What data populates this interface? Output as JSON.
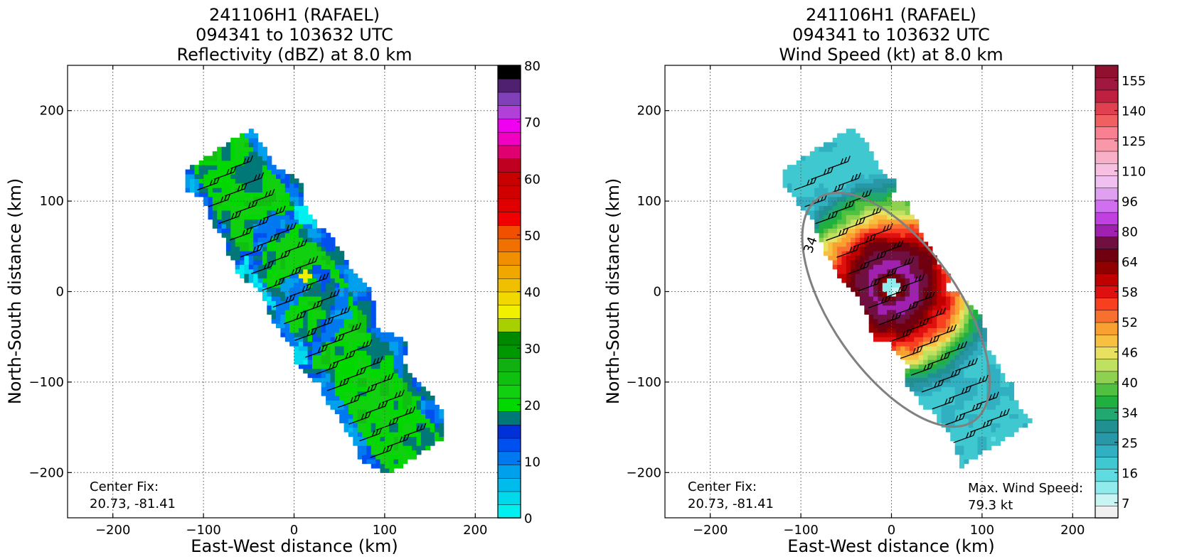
{
  "chart_data": [
    {
      "type": "heatmap",
      "title": [
        "241106H1 (RAFAEL)",
        "094341 to 103632 UTC",
        "Reflectivity (dBZ) at 8.0 km"
      ],
      "xlabel": "East-West distance (km)",
      "ylabel": "North-South distance (km)",
      "xlim": [
        -250,
        250
      ],
      "ylim": [
        -250,
        250
      ],
      "xticks": [
        -200,
        -100,
        0,
        100,
        200
      ],
      "yticks": [
        -200,
        -100,
        0,
        100,
        200
      ],
      "grid": true,
      "annotation": [
        "Center Fix:",
        "20.73, -81.41"
      ],
      "colorbar": {
        "ticks": [
          0,
          10,
          20,
          30,
          40,
          50,
          60,
          70,
          80
        ],
        "levels": [
          0,
          2.5,
          5,
          7.5,
          10,
          12.5,
          15,
          17.5,
          20,
          22.5,
          25,
          27.5,
          30,
          32.5,
          35,
          37.5,
          40,
          42.5,
          45,
          47.5,
          50,
          52.5,
          55,
          57.5,
          60,
          62.5,
          65,
          67.5,
          70,
          72.5,
          75,
          77.5,
          80
        ],
        "colors": [
          "#00f0f0",
          "#00d8ec",
          "#00bcec",
          "#00a0ec",
          "#0078f0",
          "#0050f0",
          "#0030d8",
          "#007878",
          "#00d800",
          "#10d010",
          "#10c010",
          "#10b010",
          "#009800",
          "#008800",
          "#a8d000",
          "#f0f000",
          "#f0d800",
          "#f0c000",
          "#f0a800",
          "#f09000",
          "#f07000",
          "#f05000",
          "#f00000",
          "#e00000",
          "#d00000",
          "#c80000",
          "#c00020",
          "#e00070",
          "#f000c0",
          "#f000f0",
          "#b040d8",
          "#8040b8",
          "#502070",
          "#000000"
        ]
      },
      "field": {
        "swath_axis": [
          [
            -80,
            150
          ],
          [
            130,
            -175
          ]
        ],
        "half_width_km": 50,
        "eye_center": [
          0,
          5
        ],
        "eye_radius_km": 14,
        "dominant_class": "green",
        "edge_class": "blue",
        "spot_max_dbz": 38
      }
    },
    {
      "type": "heatmap",
      "title": [
        "241106H1 (RAFAEL)",
        "094341 to 103632 UTC",
        "Wind Speed (kt) at 8.0 km"
      ],
      "xlabel": "East-West distance (km)",
      "ylabel": "North-South distance (km)",
      "xlim": [
        -250,
        250
      ],
      "ylim": [
        -250,
        250
      ],
      "xticks": [
        -200,
        -100,
        0,
        100,
        200
      ],
      "yticks": [
        -200,
        -100,
        0,
        100,
        200
      ],
      "grid": true,
      "annotation": [
        "Center Fix:",
        "20.73, -81.41"
      ],
      "annotation_right": [
        "Max. Wind Speed:",
        "79.3 kt"
      ],
      "contour_label": "34",
      "colorbar": {
        "ticks": [
          7,
          16,
          25,
          34,
          40,
          46,
          52,
          58,
          64,
          80,
          96,
          110,
          125,
          140,
          155
        ],
        "colors": [
          "#f0f0f0",
          "#c8f4f4",
          "#90ecec",
          "#60dce0",
          "#40c8d0",
          "#30b0c0",
          "#2898a8",
          "#209090",
          "#20a870",
          "#20b040",
          "#50c040",
          "#90d050",
          "#c0e060",
          "#e8e060",
          "#f8c040",
          "#f8a030",
          "#f87030",
          "#f84020",
          "#e01010",
          "#c00000",
          "#900000",
          "#700010",
          "#701040",
          "#a020b0",
          "#c040e0",
          "#d070f0",
          "#e0a0f0",
          "#f0c0f0",
          "#f8c0e0",
          "#f8b0c8",
          "#f898a8",
          "#f88090",
          "#f06060",
          "#e04050",
          "#c02040",
          "#a01840",
          "#901030"
        ]
      },
      "max_wind_kt": 79.3,
      "field": {
        "swath_axis": [
          [
            -80,
            150
          ],
          [
            115,
            -160
          ]
        ],
        "half_width_km": 48,
        "eye_center": [
          0,
          5
        ],
        "rmw_km": 22
      }
    }
  ]
}
